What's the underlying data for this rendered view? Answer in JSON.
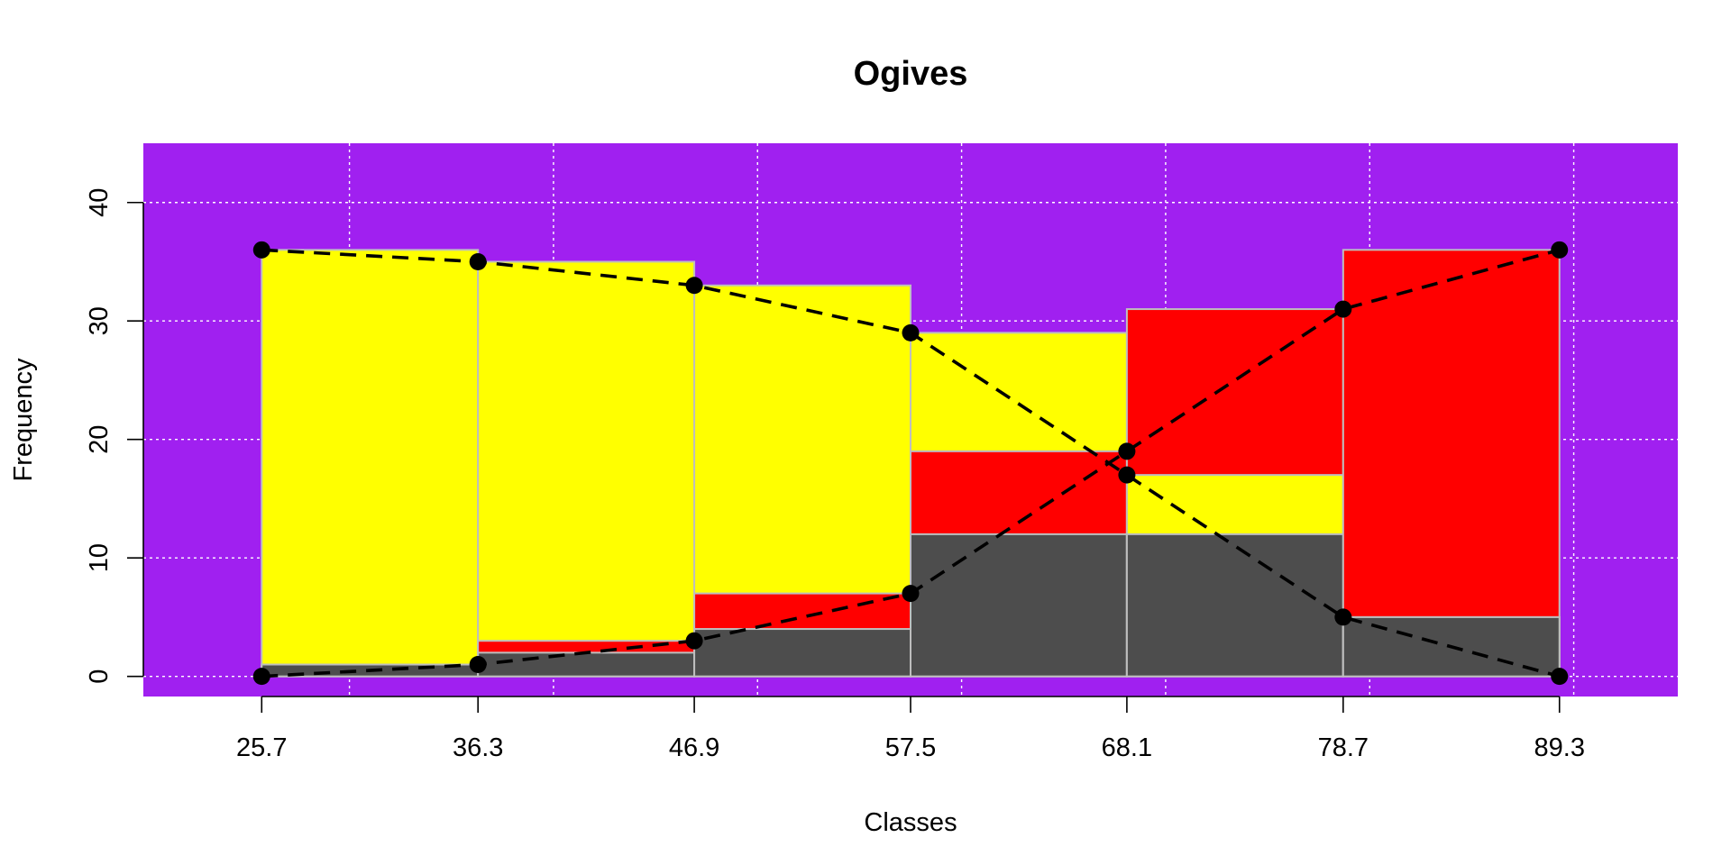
{
  "chart_data": {
    "type": "bar",
    "title": "Ogives",
    "xlabel": "Classes",
    "ylabel": "Frequency",
    "ylim": [
      -1.7,
      45
    ],
    "y_ticks": [
      "0",
      "10",
      "20",
      "30",
      "40"
    ],
    "x_tick_labels": [
      "25.7",
      "36.3",
      "46.9",
      "57.5",
      "68.1",
      "78.7",
      "89.3"
    ],
    "breaks": [
      25.7,
      36.3,
      46.9,
      57.5,
      68.1,
      78.7,
      89.3
    ],
    "grid": true,
    "colors": {
      "panel_background": "#A020F0",
      "grid": "#FFFFFF",
      "bar_border": "#BEBEBE",
      "frequency_bars": "#4D4D4D",
      "less_than_bars": "#FF0000",
      "more_than_bars": "#FFFF00",
      "points": "#000000",
      "lines": "#000000"
    },
    "series": [
      {
        "name": "",
        "kind": "frequency",
        "values": [
          1,
          2,
          4,
          12,
          12,
          5
        ]
      },
      {
        "name": "",
        "kind": "less-than cumulative",
        "values": [
          1,
          3,
          7,
          19,
          31,
          36
        ],
        "ogive_points": [
          {
            "x": 25.7,
            "y": 0
          },
          {
            "x": 36.3,
            "y": 1
          },
          {
            "x": 46.9,
            "y": 3
          },
          {
            "x": 57.5,
            "y": 7
          },
          {
            "x": 68.1,
            "y": 19
          },
          {
            "x": 78.7,
            "y": 31
          },
          {
            "x": 89.3,
            "y": 36
          }
        ]
      },
      {
        "name": "",
        "kind": "more-than cumulative",
        "values": [
          36,
          35,
          33,
          29,
          17,
          5
        ],
        "ogive_points": [
          {
            "x": 25.7,
            "y": 36
          },
          {
            "x": 36.3,
            "y": 35
          },
          {
            "x": 46.9,
            "y": 33
          },
          {
            "x": 57.5,
            "y": 29
          },
          {
            "x": 68.1,
            "y": 17
          },
          {
            "x": 78.7,
            "y": 5
          },
          {
            "x": 89.3,
            "y": 0
          }
        ]
      }
    ]
  }
}
